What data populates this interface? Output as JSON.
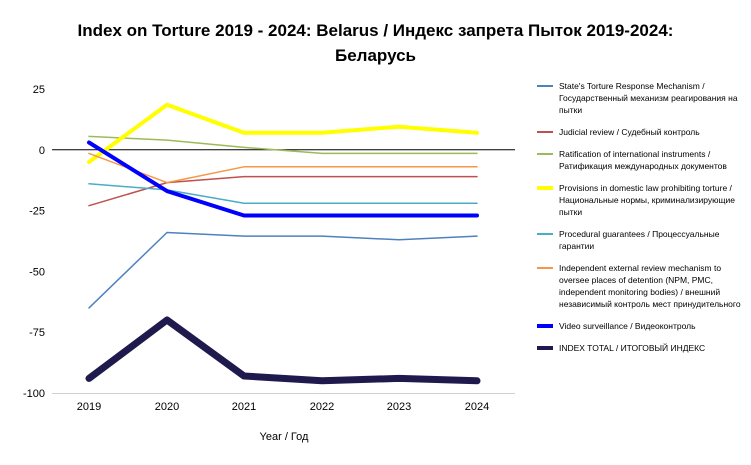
{
  "chart_data": {
    "type": "line",
    "title_line1": "Index on Torture 2019 - 2024: Belarus / Индекс запрета Пыток 2019-2024:",
    "title_line2": "Беларусь",
    "xlabel": "Year / Год",
    "ylabel": "",
    "x": [
      "2019",
      "2020",
      "2021",
      "2022",
      "2023",
      "2024"
    ],
    "ylim": [
      -100,
      25
    ],
    "yticks": [
      25,
      0,
      -25,
      -50,
      -75,
      -100
    ],
    "grid": false,
    "legend_position": "right",
    "series": [
      {
        "name": "State's Torture Response Mechanism / Государственный механизм реагирования на пытки",
        "color": "#4f81bd",
        "width": 1.5,
        "values": [
          -65,
          -34,
          -35.5,
          -35.5,
          -37,
          -35.5
        ]
      },
      {
        "name": "Judicial review / Судебный контроль",
        "color": "#c0504d",
        "width": 1.5,
        "values": [
          -23,
          -13.5,
          -11,
          -11,
          -11,
          -11
        ]
      },
      {
        "name": "Ratification of international instruments / Ратификация международных документов",
        "color": "#9bbb59",
        "width": 1.5,
        "values": [
          5.5,
          4,
          1,
          -1.5,
          -1.5,
          -1.5
        ]
      },
      {
        "name": "Provisions in domestic law prohibiting torture / Национальные нормы, криминализирующие пытки",
        "color": "#ffff00",
        "width": 4,
        "values": [
          -5,
          18.5,
          7,
          7,
          9.5,
          7
        ]
      },
      {
        "name": "Procedural guarantees / Процессуальные гарантии",
        "color": "#4bacc6",
        "width": 1.5,
        "values": [
          -14,
          -16.5,
          -22,
          -22,
          -22,
          -22
        ]
      },
      {
        "name": "Independent external review mechanism to oversee places of detention (NPM, PMC, independent monitoring bodies) / внешний независимый контроль мест принудительного",
        "color": "#f79646",
        "width": 1.5,
        "values": [
          -1.5,
          -13.5,
          -7,
          -7,
          -7,
          -7
        ]
      },
      {
        "name": "Video surveillance / Видеоконтроль",
        "color": "#0000ff",
        "width": 4,
        "values": [
          3,
          -17,
          -27,
          -27,
          -27,
          -27
        ]
      },
      {
        "name": "INDEX TOTAL / ИТОГОВЫЙ ИНДЕКС",
        "color": "#1f1a4d",
        "width": 7,
        "values": [
          -94,
          -70,
          -93,
          -95,
          -94,
          -95
        ]
      }
    ]
  }
}
